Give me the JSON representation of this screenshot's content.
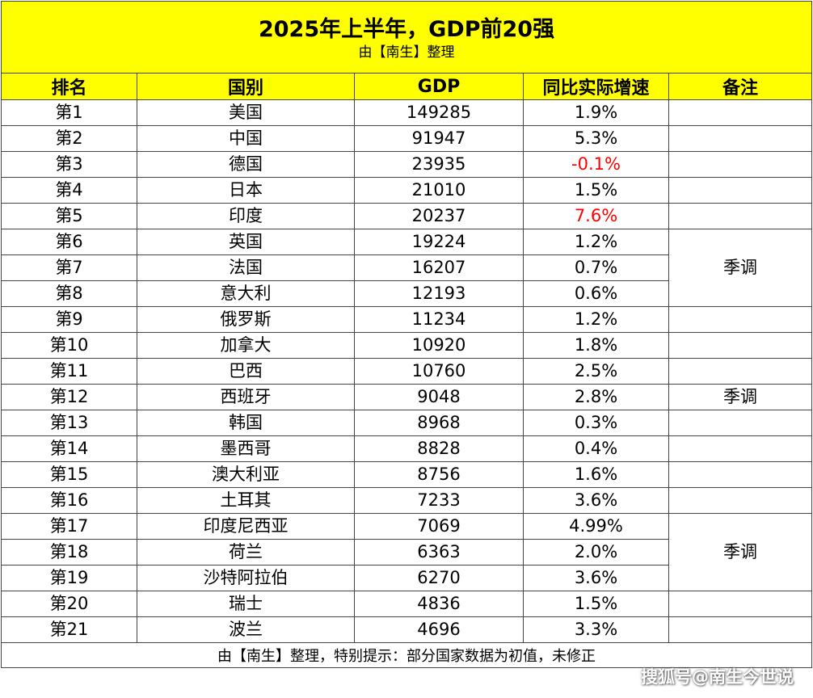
{
  "title": "2025年上半年，GDP前20强",
  "subtitle": "由【南生】整理",
  "headers": {
    "rank": "排名",
    "country": "国别",
    "gdp": "GDP",
    "growth": "同比实际增速",
    "note": "备注"
  },
  "rows": [
    {
      "rank": "第1",
      "country": "美国",
      "gdp": "149285",
      "growth": "1.9%"
    },
    {
      "rank": "第2",
      "country": "中国",
      "gdp": "91947",
      "growth": "5.3%"
    },
    {
      "rank": "第3",
      "country": "德国",
      "gdp": "23935",
      "growth": "-0.1%",
      "growth_color": "#ff0000"
    },
    {
      "rank": "第4",
      "country": "日本",
      "gdp": "21010",
      "growth": "1.5%"
    },
    {
      "rank": "第5",
      "country": "印度",
      "gdp": "20237",
      "growth": "7.6%",
      "growth_color": "#ff0000"
    },
    {
      "rank": "第6",
      "country": "英国",
      "gdp": "19224",
      "growth": "1.2%"
    },
    {
      "rank": "第7",
      "country": "法国",
      "gdp": "16207",
      "growth": "0.7%"
    },
    {
      "rank": "第8",
      "country": "意大利",
      "gdp": "12193",
      "growth": "0.6%"
    },
    {
      "rank": "第9",
      "country": "俄罗斯",
      "gdp": "11234",
      "growth": "1.2%"
    },
    {
      "rank": "第10",
      "country": "加拿大",
      "gdp": "10920",
      "growth": "1.8%"
    },
    {
      "rank": "第11",
      "country": "巴西",
      "gdp": "10760",
      "growth": "2.5%"
    },
    {
      "rank": "第12",
      "country": "西班牙",
      "gdp": "9048",
      "growth": "2.8%"
    },
    {
      "rank": "第13",
      "country": "韩国",
      "gdp": "8968",
      "growth": "0.3%"
    },
    {
      "rank": "第14",
      "country": "墨西哥",
      "gdp": "8828",
      "growth": "0.4%"
    },
    {
      "rank": "第15",
      "country": "澳大利亚",
      "gdp": "8756",
      "growth": "1.6%"
    },
    {
      "rank": "第16",
      "country": "土耳其",
      "gdp": "7233",
      "growth": "3.6%"
    },
    {
      "rank": "第17",
      "country": "印度尼西亚",
      "gdp": "7069",
      "growth": "4.99%"
    },
    {
      "rank": "第18",
      "country": "荷兰",
      "gdp": "6363",
      "growth": "2.0%"
    },
    {
      "rank": "第19",
      "country": "沙特阿拉伯",
      "gdp": "6270",
      "growth": "3.6%"
    },
    {
      "rank": "第20",
      "country": "瑞士",
      "gdp": "4836",
      "growth": "1.5%"
    },
    {
      "rank": "第21",
      "country": "波兰",
      "gdp": "4696",
      "growth": "3.3%"
    }
  ],
  "notes": [
    {
      "text": "季调",
      "rows": "第6-第8"
    },
    {
      "text": "季调",
      "rows": "第12"
    },
    {
      "text": "季调",
      "rows": "第17-第19"
    }
  ],
  "footer": "由【南生】整理，特别提示：部分国家数据为初值，未修正",
  "watermark": "搜狐号@南生今世说",
  "colors": {
    "header_bg": "#ffff00",
    "highlight_text": "#ff0000"
  }
}
